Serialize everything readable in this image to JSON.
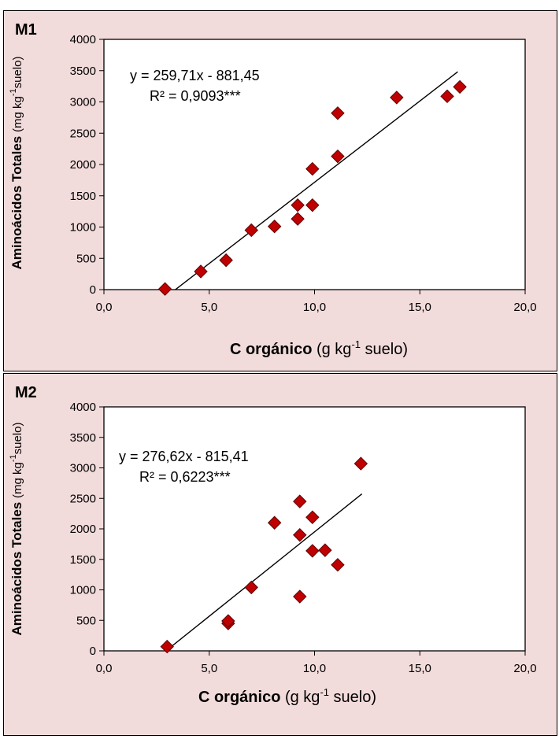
{
  "chart_data": [
    {
      "type": "scatter",
      "panel_label": "M1",
      "xlabel_bold": "C  orgánico",
      "xlabel_rest_pre": "(g kg",
      "xlabel_sup": "-1",
      "xlabel_rest_post": " suelo)",
      "ylabel_bold": "Aminoácidos Totales",
      "ylabel_rest_pre": "(mg kg",
      "ylabel_sup": "-1",
      "ylabel_rest_post": "suelo)",
      "equation": "y = 259,71x - 881,45",
      "r2_text": "R² = 0,9093***",
      "xlim": [
        0,
        20
      ],
      "ylim": [
        0,
        4000
      ],
      "x_ticks": [
        0,
        5,
        10,
        15,
        20
      ],
      "x_tick_labels": [
        "0,0",
        "5,0",
        "10,0",
        "15,0",
        "20,0"
      ],
      "y_ticks": [
        0,
        500,
        1000,
        1500,
        2000,
        2500,
        3000,
        3500,
        4000
      ],
      "y_tick_labels": [
        "0",
        "500",
        "1000",
        "1500",
        "2000",
        "2500",
        "3000",
        "3500",
        "4000"
      ],
      "points": [
        {
          "x": 2.9,
          "y": 10
        },
        {
          "x": 4.6,
          "y": 290
        },
        {
          "x": 5.8,
          "y": 470
        },
        {
          "x": 7.0,
          "y": 950
        },
        {
          "x": 8.1,
          "y": 1010
        },
        {
          "x": 9.2,
          "y": 1130
        },
        {
          "x": 9.2,
          "y": 1350
        },
        {
          "x": 9.9,
          "y": 1350
        },
        {
          "x": 9.9,
          "y": 1930
        },
        {
          "x": 11.1,
          "y": 2130
        },
        {
          "x": 11.1,
          "y": 2820
        },
        {
          "x": 13.9,
          "y": 3070
        },
        {
          "x": 16.3,
          "y": 3090
        },
        {
          "x": 16.9,
          "y": 3240
        }
      ],
      "trendline": {
        "slope": 259.71,
        "intercept": -881.45,
        "x_range": [
          3.39,
          16.8
        ]
      },
      "marker_color": "#c00000",
      "plot_bg": "#ffffff",
      "panel_bg": "#f2dcdb",
      "grid": false
    },
    {
      "type": "scatter",
      "panel_label": "M2",
      "xlabel_bold": "C  orgánico",
      "xlabel_rest_pre": "(g kg",
      "xlabel_sup": "-1",
      "xlabel_rest_post": " suelo)",
      "ylabel_bold": "Aminoácidos Totales",
      "ylabel_rest_pre": "(mg kg",
      "ylabel_sup": "-1",
      "ylabel_rest_post": "suelo)",
      "equation": "y = 276,62x - 815,41",
      "r2_text": "R² = 0,6223***",
      "xlim": [
        0,
        20
      ],
      "ylim": [
        0,
        4000
      ],
      "x_ticks": [
        0,
        5,
        10,
        15,
        20
      ],
      "x_tick_labels": [
        "0,0",
        "5,0",
        "10,0",
        "15,0",
        "20,0"
      ],
      "y_ticks": [
        0,
        500,
        1000,
        1500,
        2000,
        2500,
        3000,
        3500,
        4000
      ],
      "y_tick_labels": [
        "0",
        "500",
        "1000",
        "1500",
        "2000",
        "2500",
        "3000",
        "3500",
        "4000"
      ],
      "points": [
        {
          "x": 3.0,
          "y": 70
        },
        {
          "x": 5.9,
          "y": 450
        },
        {
          "x": 5.9,
          "y": 490
        },
        {
          "x": 7.0,
          "y": 1040
        },
        {
          "x": 8.1,
          "y": 2100
        },
        {
          "x": 9.3,
          "y": 890
        },
        {
          "x": 9.3,
          "y": 1900
        },
        {
          "x": 9.3,
          "y": 2450
        },
        {
          "x": 9.9,
          "y": 1640
        },
        {
          "x": 9.9,
          "y": 2190
        },
        {
          "x": 10.5,
          "y": 1650
        },
        {
          "x": 11.1,
          "y": 1410
        },
        {
          "x": 12.2,
          "y": 3070
        }
      ],
      "trendline": {
        "slope": 276.62,
        "intercept": -815.41,
        "x_range": [
          2.95,
          12.25
        ]
      },
      "marker_color": "#c00000",
      "plot_bg": "#ffffff",
      "panel_bg": "#f2dcdb",
      "grid": false
    }
  ]
}
